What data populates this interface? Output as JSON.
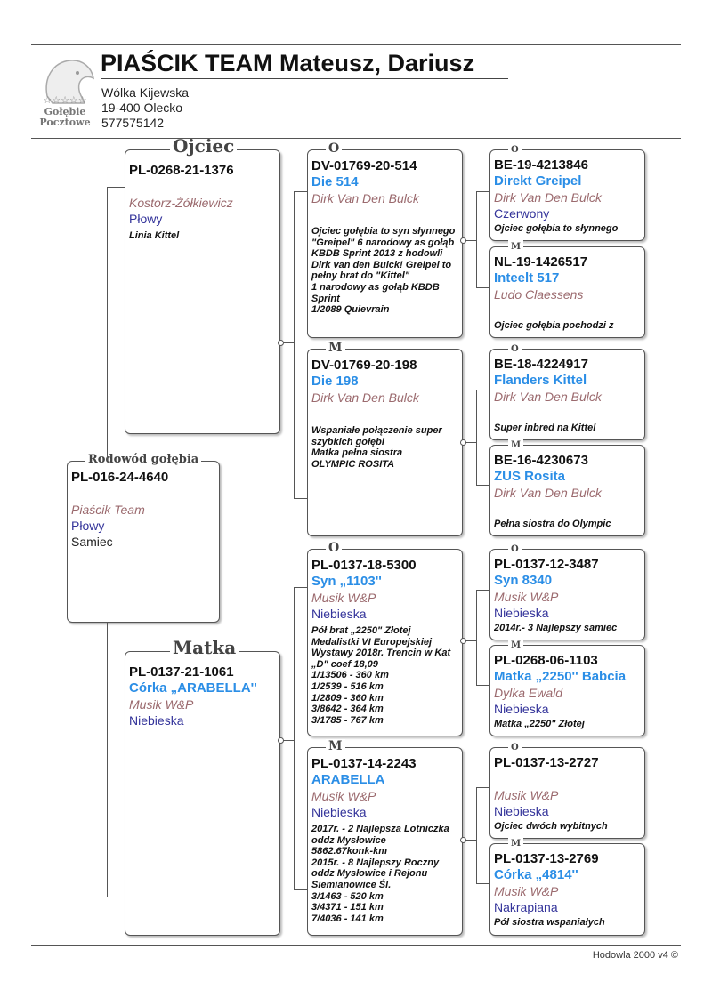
{
  "header": {
    "title": "PIAŚCIK TEAM Mateusz, Dariusz",
    "address_line1": "Wólka Kijewska",
    "address_line2": "19-400 Olecko",
    "phone": "577575142",
    "logo_text": "Gołębie Pocztowe"
  },
  "pigeons": {
    "subject": {
      "label": "Rodowód gołębia",
      "ring": "PL-016-24-4640",
      "name": "",
      "breeder": "Piaścik Team",
      "color": "Płowy",
      "sex": "Samiec",
      "notes": ""
    },
    "father": {
      "label": "Ojciec",
      "ring": "PL-0268-21-1376",
      "name": "",
      "breeder": "Kostorz-Żółkiewicz",
      "color": "Płowy",
      "notes": "Linia Kittel"
    },
    "mother": {
      "label": "Matka",
      "ring": "PL-0137-21-1061",
      "name": "Córka „ARABELLA''",
      "breeder": "Musik W&P",
      "color": "Niebieska",
      "notes": ""
    },
    "ff": {
      "label": "O",
      "ring": "DV-01769-20-514",
      "name": "Die 514",
      "breeder": "Dirk Van Den Bulck",
      "color": "",
      "notes": "Ojciec gołębia to syn słynnego \"Greipel\" 6 narodowy as gołąb KBDB Sprint 2013 z hodowli Dirk van den Bulck! Greipel to pełny brat do \"Kittel\"\n1 narodowy as gołąb KBDB Sprint\n1/2089 Quievrain"
    },
    "fm": {
      "label": "M",
      "ring": "DV-01769-20-198",
      "name": "Die 198",
      "breeder": "Dirk Van Den Bulck",
      "color": "",
      "notes": "Wspaniałe połączenie super szybkich gołębi\nMatka pełna siostra\nOLYMPIC ROSITA"
    },
    "mf": {
      "label": "O",
      "ring": "PL-0137-18-5300",
      "name": "Syn „1103''",
      "breeder": "Musik W&P",
      "color": "Niebieska",
      "notes": "Pół brat „2250\" Złotej Medalistki VI Europejskiej Wystawy 2018r. Trencin w Kat „D\" coef 18,09\n1/13506 - 360 km\n1/2539 - 516 km\n1/2809 - 360 km\n3/8642 - 364 km\n3/1785 - 767 km"
    },
    "mm": {
      "label": "M",
      "ring": "PL-0137-14-2243",
      "name": "ARABELLA",
      "breeder": "Musik W&P",
      "color": "Niebieska",
      "notes": "2017r. - 2 Najlepsza Lotniczka oddz Mysłowice\n5862.67konk-km\n2015r. - 8 Najlepszy Roczny oddz Mysłowice i Rejonu Siemianowice Śl.\n3/1463 - 520 km\n3/4371 - 151 km\n7/4036 - 141 km"
    },
    "fff": {
      "label": "O",
      "ring": "BE-19-4213846",
      "name": "Direkt Greipel",
      "breeder": "Dirk Van Den Bulck",
      "color": "Czerwony",
      "notes": "Ojciec gołębia to słynnego"
    },
    "ffm": {
      "label": "M",
      "ring": "NL-19-1426517",
      "name": "Inteelt 517",
      "breeder": "Ludo Claessens",
      "color": "",
      "notes": "Ojciec gołębia pochodzi z"
    },
    "fmf": {
      "label": "O",
      "ring": "BE-18-4224917",
      "name": "Flanders Kittel",
      "breeder": "Dirk Van Den Bulck",
      "color": "",
      "notes": "Super inbred na Kittel"
    },
    "fmm": {
      "label": "M",
      "ring": "BE-16-4230673",
      "name": "ZUS Rosita",
      "breeder": "Dirk Van Den Bulck",
      "color": "",
      "notes": "Pełna siostra do Olympic"
    },
    "mff": {
      "label": "O",
      "ring": "PL-0137-12-3487",
      "name": "Syn 8340",
      "breeder": "Musik W&P",
      "color": "Niebieska",
      "notes": "2014r.- 3 Najlepszy samiec"
    },
    "mfm": {
      "label": "M",
      "ring": "PL-0268-06-1103",
      "name": "Matka „2250'' Babcia",
      "breeder": "Dylka Ewald",
      "color": "Niebieska",
      "notes": "Matka „2250\" Złotej"
    },
    "mmf": {
      "label": "O",
      "ring": "PL-0137-13-2727",
      "name": "",
      "breeder": "Musik W&P",
      "color": "Niebieska",
      "notes": "Ojciec dwóch wybitnych"
    },
    "mmm": {
      "label": "M",
      "ring": "PL-0137-13-2769",
      "name": "Córka „4814''",
      "breeder": "Musik W&P",
      "color": "Nakrapiana",
      "notes": "Pół siostra wspaniałych"
    }
  },
  "footer": {
    "text": "Hodowla 2000 v4 ©"
  },
  "colors": {
    "name": "#2b8ee6",
    "breeder": "#9b6a6e",
    "color": "#33339a"
  }
}
